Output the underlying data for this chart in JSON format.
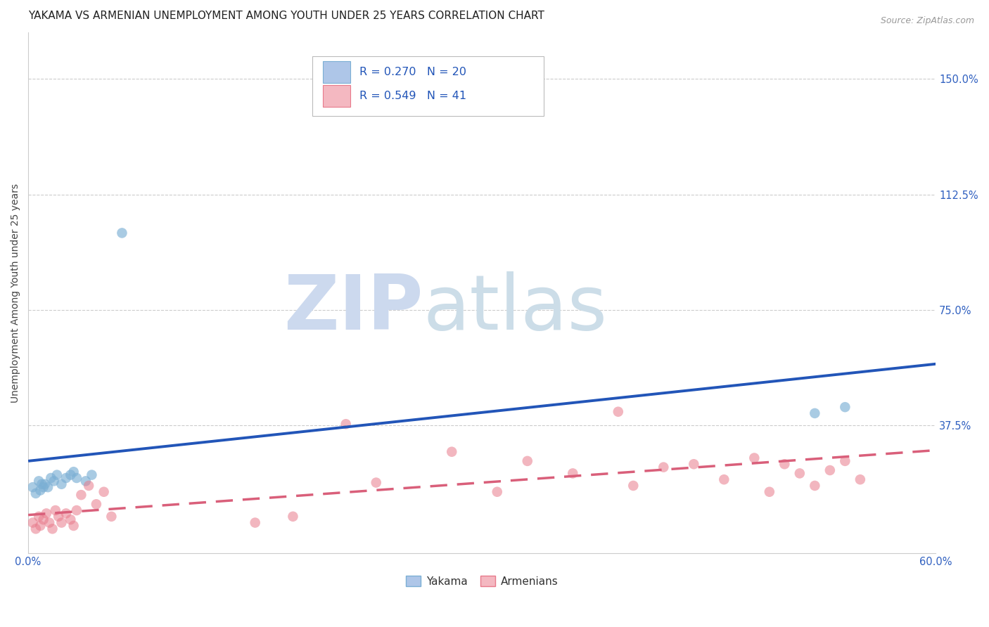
{
  "title": "YAKAMA VS ARMENIAN UNEMPLOYMENT AMONG YOUTH UNDER 25 YEARS CORRELATION CHART",
  "source": "Source: ZipAtlas.com",
  "ylabel": "Unemployment Among Youth under 25 years",
  "right_yticks": [
    "150.0%",
    "112.5%",
    "75.0%",
    "37.5%"
  ],
  "right_ytick_vals": [
    1.5,
    1.125,
    0.75,
    0.375
  ],
  "xlim": [
    0.0,
    0.6
  ],
  "ylim": [
    -0.04,
    1.65
  ],
  "legend_entries": [
    {
      "label_r": "R = 0.270",
      "label_n": "N = 20",
      "color": "#aec6e8",
      "edge": "#7bafd4"
    },
    {
      "label_r": "R = 0.549",
      "label_n": "N = 41",
      "color": "#f4b8c1",
      "edge": "#e87a8b"
    }
  ],
  "yakama_scatter": {
    "color": "#7bafd4",
    "alpha": 0.65,
    "size": 110,
    "x": [
      0.003,
      0.005,
      0.007,
      0.008,
      0.009,
      0.01,
      0.011,
      0.013,
      0.015,
      0.017,
      0.019,
      0.022,
      0.025,
      0.028,
      0.03,
      0.032,
      0.038,
      0.042,
      0.52,
      0.54
    ],
    "y": [
      0.175,
      0.155,
      0.195,
      0.165,
      0.185,
      0.175,
      0.185,
      0.175,
      0.205,
      0.195,
      0.215,
      0.185,
      0.205,
      0.215,
      0.225,
      0.205,
      0.195,
      0.215,
      0.415,
      0.435
    ]
  },
  "yakama_outlier_x": [
    0.062
  ],
  "yakama_outlier_y": [
    1.0
  ],
  "yakama_line": {
    "color": "#2255b8",
    "x0": 0.0,
    "y0": 0.26,
    "x1": 0.6,
    "y1": 0.575,
    "linewidth": 2.8
  },
  "armenians_scatter": {
    "color": "#e87a8b",
    "alpha": 0.55,
    "size": 110,
    "x": [
      0.003,
      0.005,
      0.007,
      0.008,
      0.01,
      0.012,
      0.014,
      0.016,
      0.018,
      0.02,
      0.022,
      0.025,
      0.028,
      0.03,
      0.032,
      0.035,
      0.04,
      0.045,
      0.05,
      0.055,
      0.15,
      0.175,
      0.21,
      0.23,
      0.28,
      0.31,
      0.33,
      0.36,
      0.39,
      0.4,
      0.42,
      0.44,
      0.46,
      0.48,
      0.49,
      0.5,
      0.51,
      0.52,
      0.53,
      0.54,
      0.55
    ],
    "y": [
      0.06,
      0.04,
      0.08,
      0.05,
      0.07,
      0.09,
      0.06,
      0.04,
      0.1,
      0.08,
      0.06,
      0.09,
      0.07,
      0.05,
      0.1,
      0.15,
      0.18,
      0.12,
      0.16,
      0.08,
      0.06,
      0.08,
      0.38,
      0.19,
      0.29,
      0.16,
      0.26,
      0.22,
      0.42,
      0.18,
      0.24,
      0.25,
      0.2,
      0.27,
      0.16,
      0.25,
      0.22,
      0.18,
      0.23,
      0.26,
      0.2
    ]
  },
  "armenians_line": {
    "color": "#d95f7a",
    "x0": 0.0,
    "y0": 0.085,
    "x1": 0.6,
    "y1": 0.295,
    "linewidth": 2.5
  },
  "watermark_zip_color": "#ccd9ee",
  "watermark_atlas_color": "#ccdde8",
  "background_color": "#ffffff",
  "grid_color": "#cccccc",
  "title_fontsize": 11,
  "axis_label_fontsize": 10,
  "tick_fontsize": 10.5
}
